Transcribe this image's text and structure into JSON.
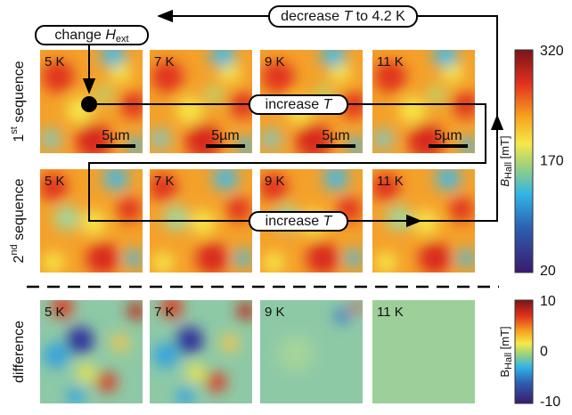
{
  "flow_labels": {
    "change_field": {
      "text": "change ",
      "symbol": "H",
      "subscript": "ext"
    },
    "decrease": {
      "text": "decrease ",
      "symbol": "T",
      "suffix": " to 4.2 K"
    },
    "increase": {
      "text": "increase ",
      "symbol": "T"
    }
  },
  "rows": [
    {
      "ordinal": "1",
      "ordinal_suffix": "st",
      "label": " sequence",
      "panels": [
        "5 K",
        "7 K",
        "9 K",
        "11 K"
      ],
      "scale_bar": "5µm"
    },
    {
      "ordinal": "2",
      "ordinal_suffix": "nd",
      "label": " sequence",
      "panels": [
        "5 K",
        "7 K",
        "9 K",
        "11 K"
      ]
    },
    {
      "label": "difference",
      "panels": [
        "5 K",
        "7 K",
        "9 K",
        "11 K"
      ]
    }
  ],
  "colorbars": [
    {
      "symbol": "B",
      "subscript": "Hall",
      "unit": " [mT]",
      "ticks": [
        "320",
        "170",
        "20"
      ]
    },
    {
      "symbol": "B",
      "subscript": "Hall",
      "unit": " [mT]",
      "ticks": [
        "10",
        "0",
        "-10"
      ]
    }
  ]
}
